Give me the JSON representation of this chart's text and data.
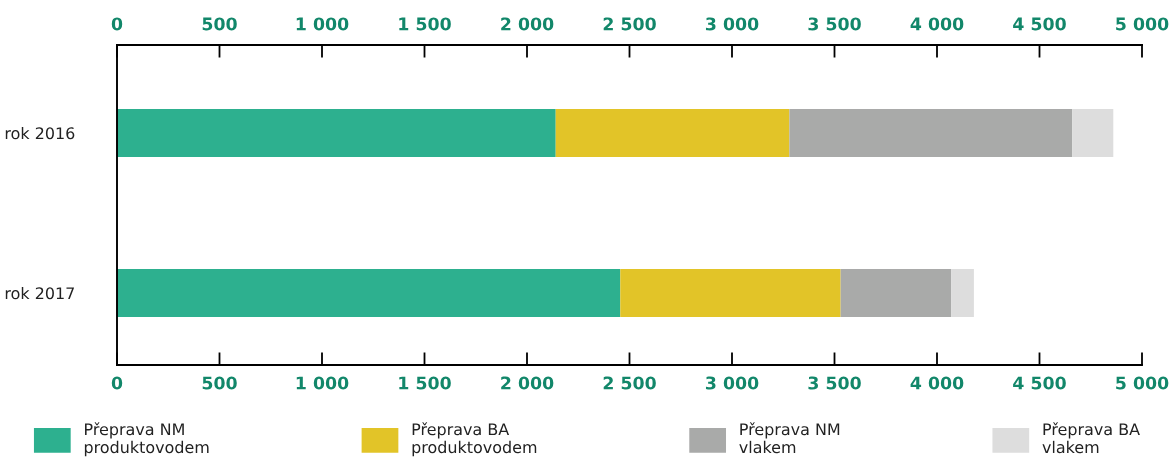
{
  "chart_data": {
    "type": "bar",
    "orientation": "horizontal",
    "stacked": true,
    "categories": [
      "rok 2016",
      "rok 2017"
    ],
    "series": [
      {
        "name": "Přeprava NM\nproduktovodem",
        "color": "#2db08f",
        "values": [
          2140,
          2455
        ]
      },
      {
        "name": "Přeprava BA\nproduktovodem",
        "color": "#e2c428",
        "values": [
          1140,
          1075
        ]
      },
      {
        "name": "Přeprava NM\nvlakem",
        "color": "#a9aaa9",
        "values": [
          1380,
          540
        ]
      },
      {
        "name": "Přeprava BA\nvlakem",
        "color": "#dddddd",
        "values": [
          200,
          110
        ]
      }
    ],
    "xlim": [
      0,
      5000
    ],
    "xticks": [
      0,
      500,
      {
        "value": 1000,
        "label": "1 000"
      },
      {
        "value": 1500,
        "label": "1 500"
      },
      {
        "value": 2000,
        "label": "2 000"
      },
      {
        "value": 2500,
        "label": "2 500"
      },
      {
        "value": 3000,
        "label": "3 000"
      },
      {
        "value": 3500,
        "label": "3 500"
      },
      {
        "value": 4000,
        "label": "4 000"
      },
      {
        "value": 4500,
        "label": "4 500"
      },
      {
        "value": 5000,
        "label": "5 000"
      }
    ],
    "x2lim": [
      0,
      5000
    ],
    "x2ticks": [
      0,
      500,
      {
        "value": 1000,
        "label": "1 000"
      },
      {
        "value": 1500,
        "label": "1 500"
      },
      {
        "value": 2000,
        "label": "2 000"
      },
      {
        "value": 2500,
        "label": "2 500"
      },
      {
        "value": 3000,
        "label": "3 000"
      },
      {
        "value": 3500,
        "label": "3 500"
      },
      {
        "value": 4000,
        "label": "4 000"
      },
      {
        "value": 4500,
        "label": "4 500"
      },
      {
        "value": 5000,
        "label": "5 000"
      }
    ],
    "legend": "bottom",
    "grid": false
  }
}
